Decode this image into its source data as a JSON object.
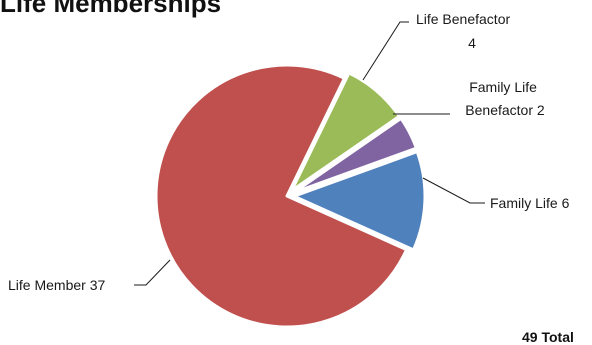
{
  "chart_data": {
    "type": "pie",
    "title": "Life Memberships",
    "slices": [
      {
        "label": "Life Benefactor",
        "value": 4,
        "color": "#9bbb59"
      },
      {
        "label": "Family Life Benefactor",
        "value": 2,
        "color": "#8064a2"
      },
      {
        "label": "Family Life",
        "value": 6,
        "color": "#4f81bd"
      },
      {
        "label": "Life Member",
        "value": 37,
        "color": "#c0504d"
      }
    ],
    "total_label": "49 Total"
  }
}
